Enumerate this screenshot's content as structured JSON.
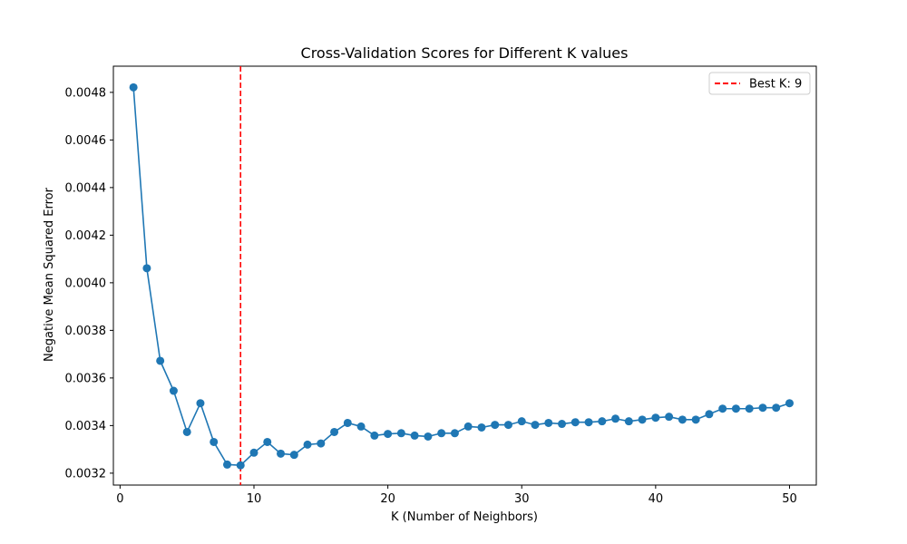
{
  "chart_data": {
    "type": "line",
    "title": "Cross-Validation Scores for Different K values",
    "xlabel": "K (Number of Neighbors)",
    "ylabel": "Negative Mean Squared Error",
    "xlim": [
      -0.5,
      52.0
    ],
    "ylim": [
      0.00315,
      0.00491
    ],
    "xticks": [
      0,
      10,
      20,
      30,
      40,
      50
    ],
    "yticks": [
      0.0032,
      0.0034,
      0.0036,
      0.0038,
      0.004,
      0.0042,
      0.0044,
      0.0046,
      0.0048
    ],
    "ytick_labels": [
      "0.0032",
      "0.0034",
      "0.0036",
      "0.0038",
      "0.0040",
      "0.0042",
      "0.0044",
      "0.0046",
      "0.0048"
    ],
    "grid": false,
    "legend_position": "top-right",
    "series": [
      {
        "color": "#1f77b4",
        "marker": "circle",
        "x": [
          1,
          2,
          3,
          4,
          5,
          6,
          7,
          8,
          9,
          10,
          11,
          12,
          13,
          14,
          15,
          16,
          17,
          18,
          19,
          20,
          21,
          22,
          23,
          24,
          25,
          26,
          27,
          28,
          29,
          30,
          31,
          32,
          33,
          34,
          35,
          36,
          37,
          38,
          39,
          40,
          41,
          42,
          43,
          44,
          45,
          46,
          47,
          48,
          49,
          50
        ],
        "values": [
          0.004821,
          0.004061,
          0.003672,
          0.003546,
          0.003373,
          0.003494,
          0.003331,
          0.003236,
          0.003233,
          0.003286,
          0.003331,
          0.003282,
          0.003277,
          0.00332,
          0.003325,
          0.003373,
          0.003411,
          0.003396,
          0.003358,
          0.003365,
          0.003368,
          0.003358,
          0.003354,
          0.003368,
          0.003368,
          0.003396,
          0.003392,
          0.003403,
          0.003403,
          0.003418,
          0.003403,
          0.003411,
          0.003407,
          0.003414,
          0.003414,
          0.003418,
          0.003429,
          0.003418,
          0.003425,
          0.003433,
          0.003437,
          0.003425,
          0.003425,
          0.003448,
          0.003471,
          0.003471,
          0.003471,
          0.003475,
          0.003475,
          0.003494
        ]
      }
    ],
    "reference_lines": [
      {
        "orientation": "vertical",
        "x": 9,
        "color": "#ff0000",
        "style": "dashed",
        "label": "Best K: 9"
      }
    ]
  }
}
